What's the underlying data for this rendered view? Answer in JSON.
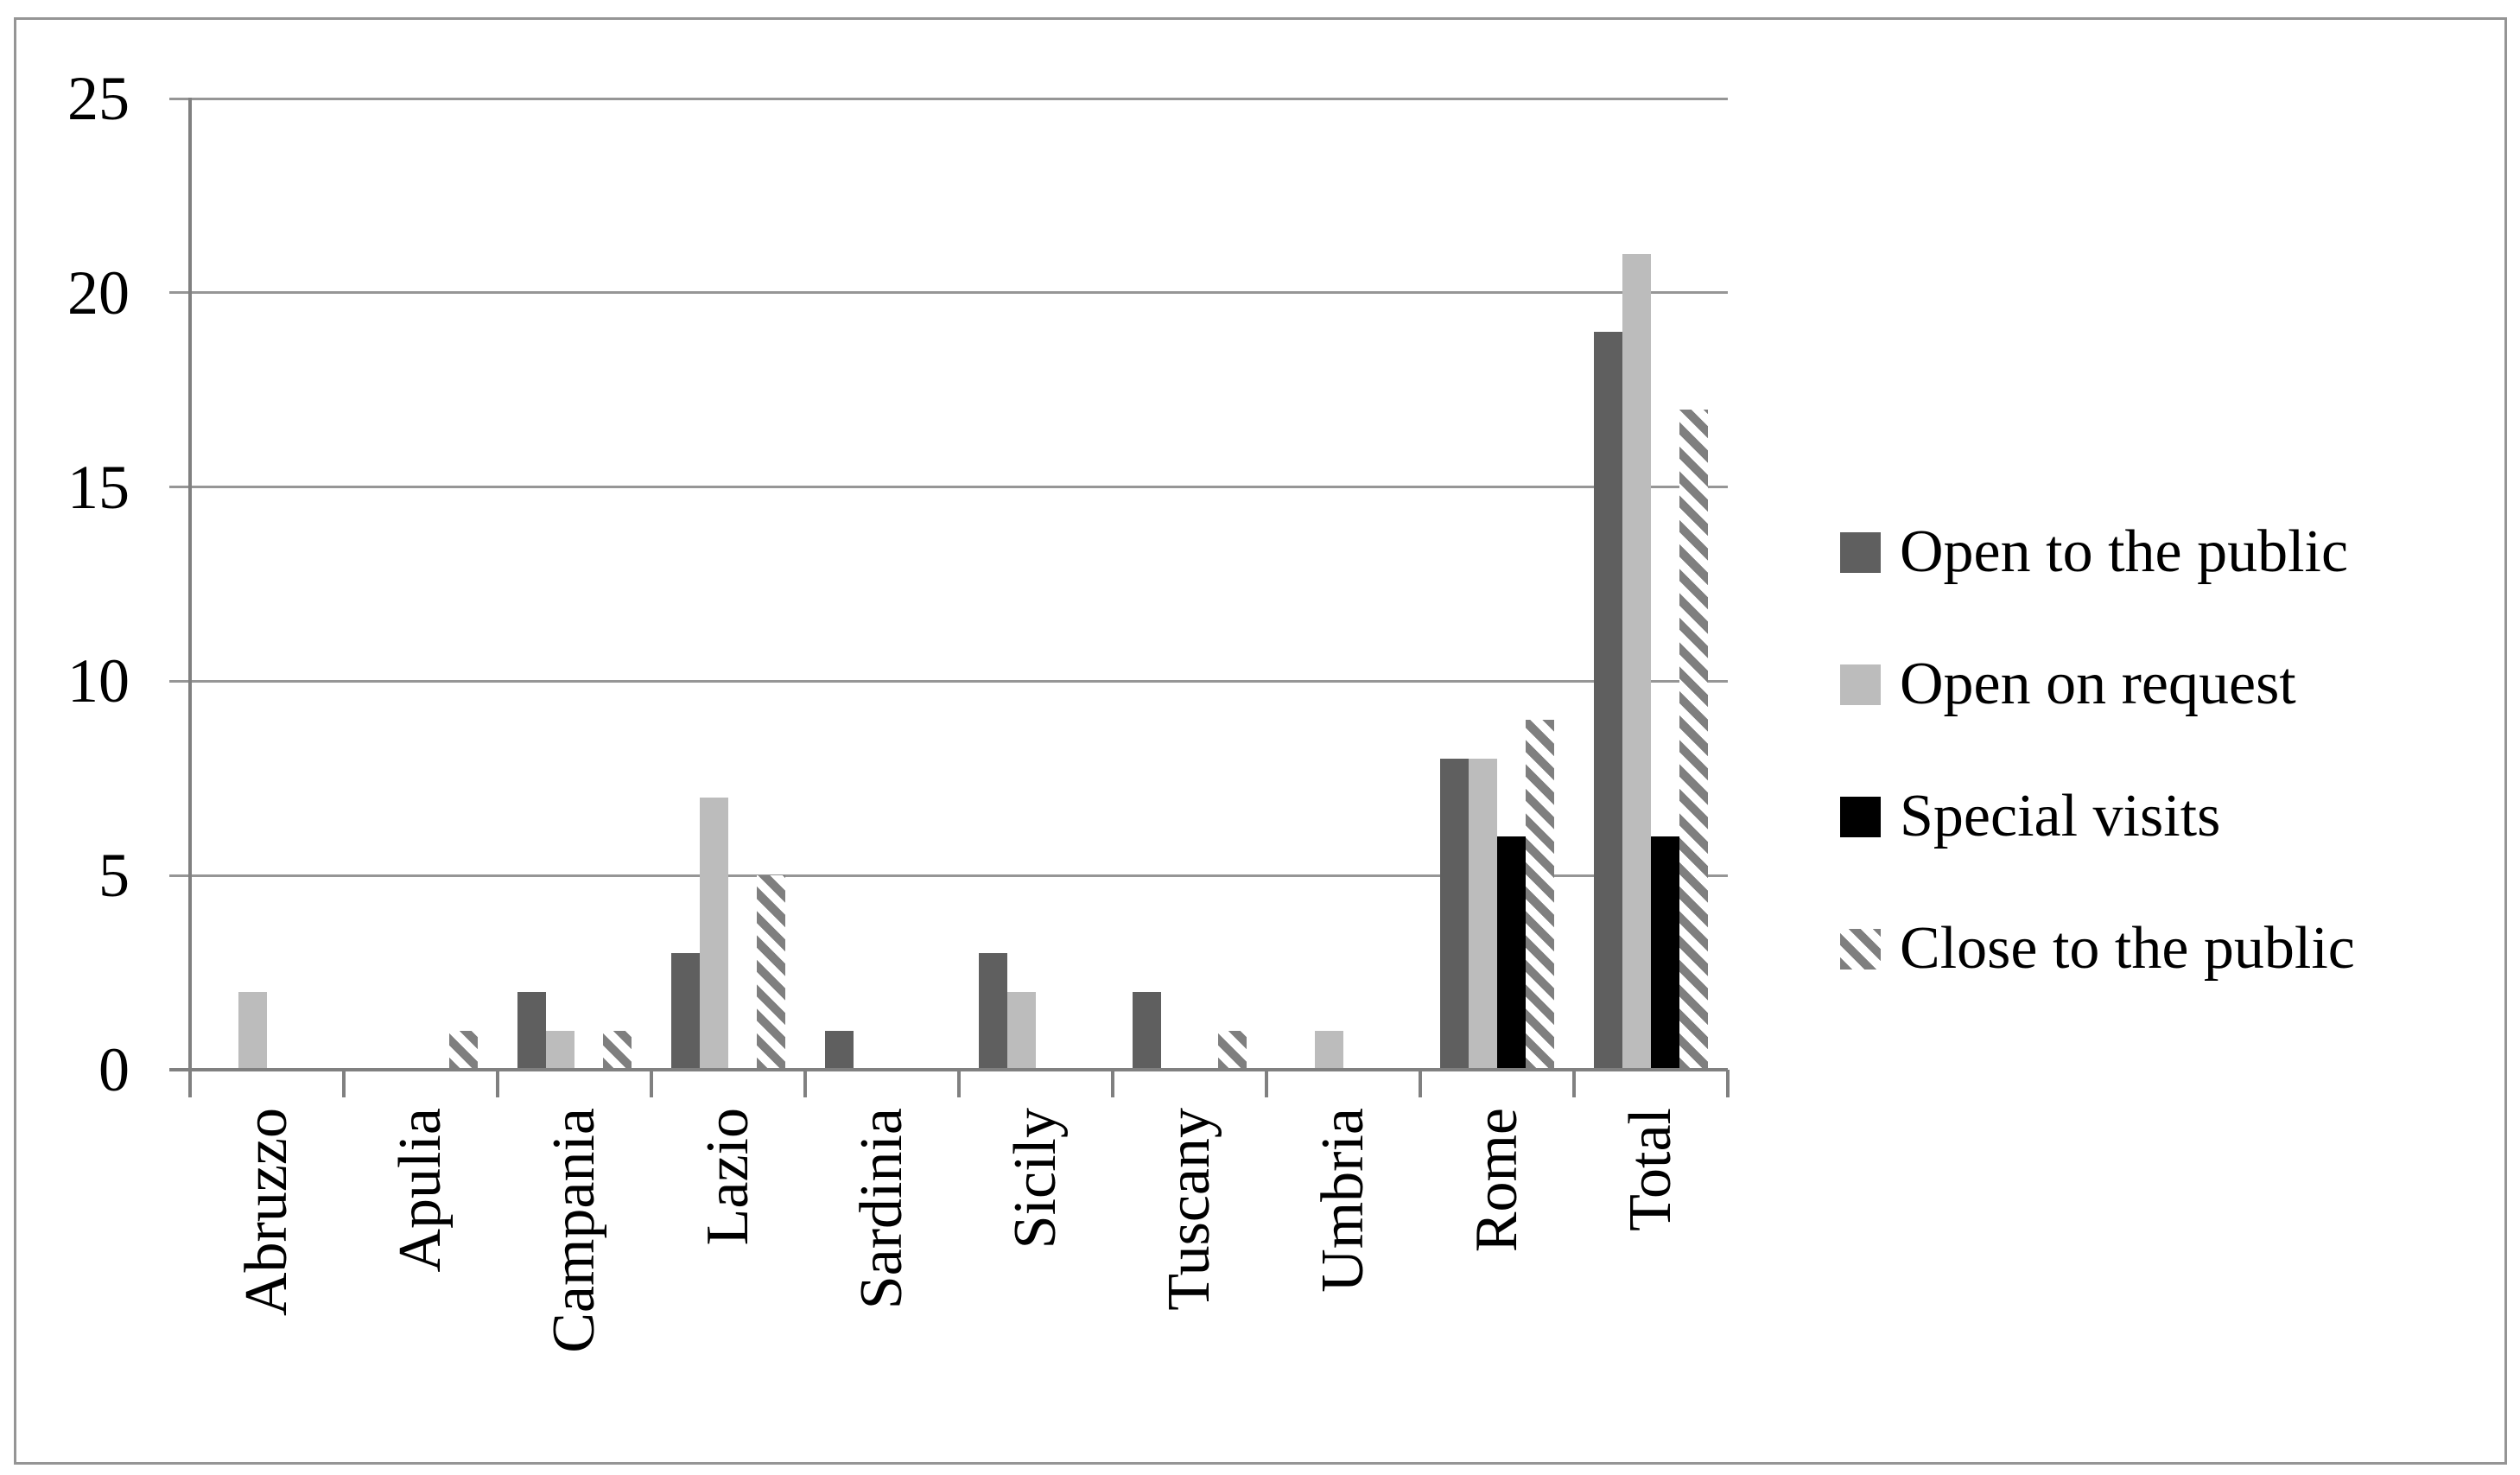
{
  "figure": {
    "background": "#ffffff",
    "border_color": "#959595",
    "title": ""
  },
  "chart_data": {
    "type": "bar",
    "title": "",
    "xlabel": "",
    "ylabel": "",
    "categories": [
      "Abruzzo",
      "Apulia",
      "Campania",
      "Lazio",
      "Sardinia",
      "Sicily",
      "Tuscany",
      "Umbria",
      "Rome",
      "Total"
    ],
    "series": [
      {
        "name": "Open to the public",
        "color": "#5f5f5f",
        "pattern": "solid",
        "values": [
          0,
          0,
          2,
          3,
          1,
          3,
          2,
          0,
          8,
          19
        ]
      },
      {
        "name": "Open on request",
        "color": "#bcbcbc",
        "pattern": "solid",
        "values": [
          2,
          0,
          1,
          7,
          0,
          2,
          0,
          1,
          8,
          21
        ]
      },
      {
        "name": "Special visits",
        "color": "#000000",
        "pattern": "solid",
        "values": [
          0,
          0,
          0,
          0,
          0,
          0,
          0,
          0,
          6,
          6
        ]
      },
      {
        "name": "Close to the public",
        "color": "#7f7f7f",
        "pattern": "diagonal-hatch",
        "values": [
          0,
          1,
          1,
          5,
          0,
          0,
          1,
          0,
          9,
          17
        ]
      }
    ],
    "y_axis": {
      "min": 0,
      "max": 25,
      "step": 5,
      "tick_labels": [
        "25",
        "20",
        "15",
        "10",
        "5",
        "0"
      ]
    },
    "x_axis": {
      "label_rotation": "vertical-bottom-to-top"
    },
    "grid": true,
    "gridline_color": "#969696",
    "axis_color": "#808080",
    "legend_position": "right"
  }
}
